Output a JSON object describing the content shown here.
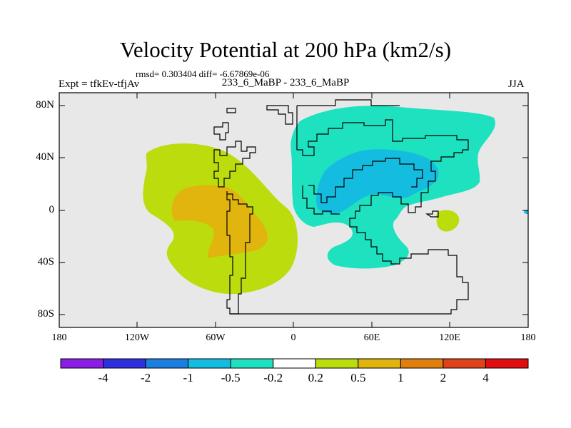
{
  "header": {
    "title": "Velocity Potential at 200 hPa (km2/s)",
    "stats": "rmsd= 0.303404 diff= -6.67869e-06",
    "expt": "Expt = tfkEv-tfjAv",
    "case": "233_6_MaBP - 233_6_MaBP",
    "season": "JJA"
  },
  "chart_data": {
    "type": "heatmap",
    "title": "Velocity Potential at 200 hPa (km2/s)",
    "subtitle": "233_6_MaBP - 233_6_MaBP",
    "xlim": [
      -180,
      180
    ],
    "ylim": [
      -90,
      90
    ],
    "x_ticks": [
      -180,
      -120,
      -60,
      0,
      60,
      120,
      180
    ],
    "x_tick_labels": [
      "180",
      "120W",
      "60W",
      "0",
      "60E",
      "120E",
      "180"
    ],
    "y_ticks": [
      80,
      40,
      0,
      -40,
      -80
    ],
    "y_tick_labels": [
      "80N",
      "40N",
      "0",
      "40S",
      "80S"
    ],
    "contour_levels": [
      -4,
      -2,
      -1,
      -0.5,
      -0.2,
      0.2,
      0.5,
      1,
      2,
      4
    ],
    "colorbar_labels": [
      "-4",
      "-2",
      "-1",
      "-0.5",
      "-0.2",
      "0.2",
      "0.5",
      "1",
      "2",
      "4"
    ],
    "colorbar_colors": [
      "#8a1ee6",
      "#2f2fe0",
      "#1a7fe0",
      "#14bde0",
      "#1ee1c0",
      "#ffffff",
      "#bcdc0e",
      "#e1b40e",
      "#e17f0e",
      "#e0421a",
      "#e00e0e"
    ],
    "background_color": "#e8e8e8",
    "regions": [
      {
        "level_range": "0.2 to 0.5",
        "approx_center_lon": -55,
        "approx_center_lat": 8,
        "color": "#bcdc0e"
      },
      {
        "level_range": "0.5 to 1",
        "approx_center_lon": -58,
        "approx_center_lat": 0,
        "color": "#e1b40e"
      },
      {
        "level_range": "-0.5 to -0.2",
        "approx_center_lon": 75,
        "approx_center_lat": 35,
        "color": "#1ee1c0"
      },
      {
        "level_range": "-1 to -0.5",
        "approx_center_lon": 75,
        "approx_center_lat": 25,
        "color": "#14bde0"
      },
      {
        "level_range": "0.2 to 0.5",
        "approx_center_lon": 120,
        "approx_center_lat": -8,
        "color": "#bcdc0e"
      }
    ]
  }
}
